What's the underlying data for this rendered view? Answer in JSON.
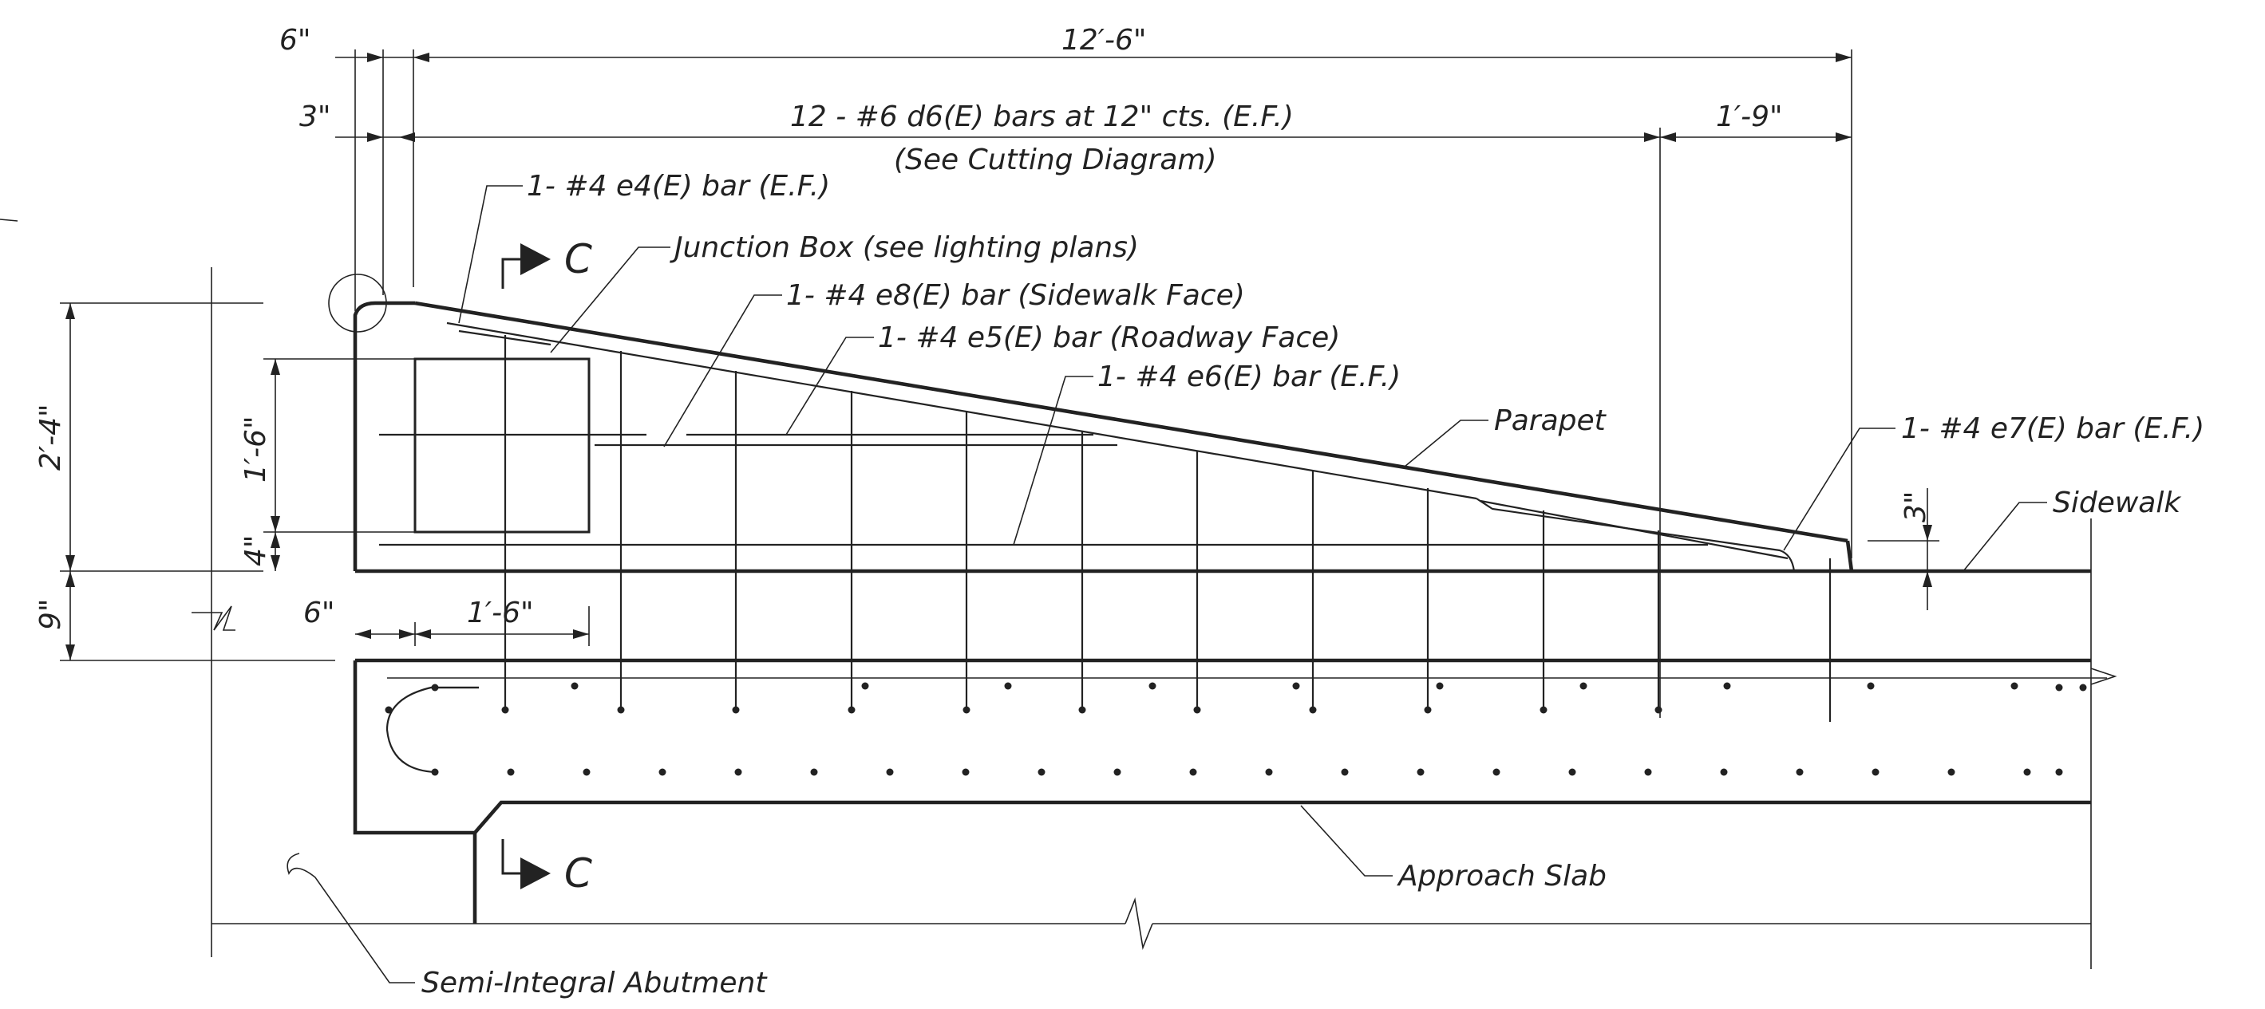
{
  "dimensions": {
    "overall_6in": "6\"",
    "overall_length": "12′-6\"",
    "offset_3in": "3\"",
    "bars_spacing": "12 - #6 d6(E) bars at 12\" cts. (E.F.)",
    "cutting_diagram": "(See Cutting Diagram)",
    "end_1_9": "1′-9\"",
    "height_2_4": "2′-4\"",
    "box_height_1_6": "1′-6\"",
    "box_offset_4": "4\"",
    "slab_9": "9\"",
    "box_left_6": "6\"",
    "box_width_1_6": "1′-6\"",
    "sidewalk_3": "3\""
  },
  "callouts": {
    "e4": "1- #4 e4(E) bar (E.F.)",
    "junction_box": "Junction Box (see lighting plans)",
    "e8": "1- #4 e8(E) bar (Sidewalk Face)",
    "e5": "1- #4 e5(E) bar (Roadway Face)",
    "e6": "1- #4 e6(E) bar (E.F.)",
    "parapet": "Parapet",
    "e7": "1- #4 e7(E) bar (E.F.)",
    "sidewalk": "Sidewalk",
    "approach_slab": "Approach Slab",
    "semi_integral_abutment": "Semi-Integral Abutment"
  },
  "section_markers": {
    "top": "C",
    "bottom": "C"
  }
}
